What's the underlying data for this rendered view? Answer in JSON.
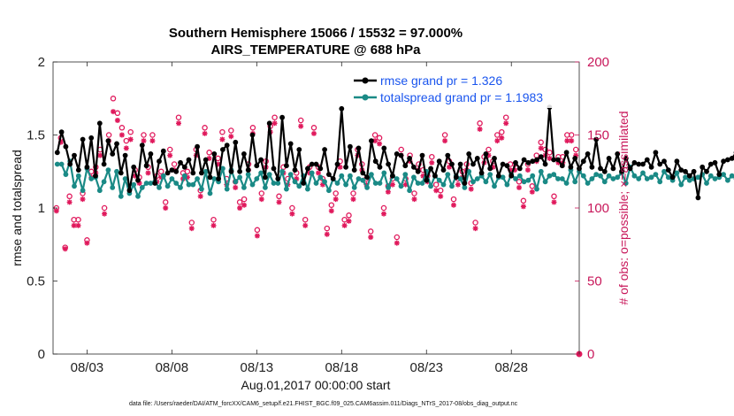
{
  "chart_data": {
    "type": "line",
    "title": "Southern Hemisphere 15066 / 15532 = 97.000%",
    "subtitle": "AIRS_TEMPERATURE @ 688 hPa",
    "xlabel": "Aug.01,2017 00:00:00 start",
    "ylabel": "rmse and totalspread",
    "ylabel_right": "# of obs: o=possible; ×=assimilated",
    "ylim": [
      0,
      2
    ],
    "ylim_right": [
      0,
      200
    ],
    "xlim": [
      1.0,
      32.0
    ],
    "x_ticks": [
      3,
      8,
      13,
      18,
      23,
      28
    ],
    "x_tick_labels": [
      "08/03",
      "08/08",
      "08/13",
      "08/18",
      "08/23",
      "08/28"
    ],
    "y_ticks": [
      0,
      0.5,
      1,
      1.5,
      2
    ],
    "y_tick_labels": [
      "0",
      "0.5",
      "1",
      "1.5",
      "2"
    ],
    "y_right_ticks": [
      0,
      50,
      100,
      150,
      200
    ],
    "y_right_tick_labels": [
      "0",
      "50",
      "100",
      "150",
      "200"
    ],
    "legend_position": "top-right",
    "grid": false,
    "colors": {
      "rmse": "#000000",
      "spread": "#1a8a86",
      "obs": "#e0195c",
      "right_axis": "#c8175a",
      "legend_text": "#1a55ee"
    },
    "x_step": 0.25,
    "series": [
      {
        "name": "rmse grand pr = 1.326",
        "values": [
          1.38,
          1.52,
          1.42,
          1.3,
          1.36,
          1.26,
          1.47,
          1.28,
          1.48,
          1.22,
          1.58,
          1.3,
          1.46,
          1.37,
          1.44,
          1.24,
          1.36,
          1.12,
          1.28,
          1.19,
          1.43,
          1.29,
          1.37,
          1.17,
          1.32,
          1.39,
          1.24,
          1.26,
          1.25,
          1.31,
          1.28,
          1.33,
          1.24,
          1.42,
          1.24,
          1.33,
          1.21,
          1.37,
          1.2,
          1.4,
          1.43,
          1.25,
          1.45,
          1.25,
          1.37,
          1.26,
          1.5,
          1.29,
          1.33,
          1.21,
          1.58,
          1.27,
          1.2,
          1.62,
          1.29,
          1.44,
          1.26,
          1.4,
          1.17,
          1.27,
          1.3,
          1.3,
          1.27,
          1.4,
          1.23,
          1.2,
          1.3,
          1.68,
          1.28,
          1.42,
          1.26,
          1.41,
          1.24,
          1.21,
          1.46,
          1.32,
          1.28,
          1.41,
          1.3,
          1.22,
          1.37,
          1.36,
          1.29,
          1.34,
          1.28,
          1.25,
          1.36,
          1.19,
          1.27,
          1.22,
          1.32,
          1.26,
          1.36,
          1.3,
          1.21,
          1.3,
          1.17,
          1.37,
          1.3,
          1.34,
          1.24,
          1.37,
          1.27,
          1.34,
          1.22,
          1.3,
          1.29,
          1.22,
          1.31,
          1.27,
          1.33,
          1.31,
          1.32,
          1.33,
          1.35,
          1.3,
          1.69,
          1.33,
          1.33,
          1.29,
          1.38,
          1.28,
          1.34,
          1.27,
          1.32,
          1.37,
          1.28,
          1.47,
          1.27,
          1.25,
          1.34,
          1.27,
          1.37,
          1.25,
          1.34,
          1.27,
          1.31,
          1.3,
          1.3,
          1.33,
          1.28,
          1.38,
          1.3,
          1.32,
          1.26,
          1.21,
          1.32,
          1.26,
          1.25,
          1.22,
          1.25,
          1.07,
          1.28,
          1.25,
          1.3,
          1.31,
          1.23,
          1.32,
          1.33,
          1.34,
          1.38,
          1.42,
          1.33,
          1.37,
          1.4,
          1.23,
          1.34,
          1.35,
          1.32
        ]
      },
      {
        "name": "totalspread grand pr = 1.1983",
        "values": [
          1.3,
          1.3,
          1.23,
          1.32,
          1.15,
          1.22,
          1.12,
          1.27,
          1.2,
          1.21,
          1.12,
          1.18,
          1.26,
          1.14,
          1.25,
          1.08,
          1.2,
          1.1,
          1.16,
          1.08,
          1.14,
          1.17,
          1.17,
          1.18,
          1.14,
          1.22,
          1.15,
          1.2,
          1.17,
          1.14,
          1.22,
          1.16,
          1.16,
          1.2,
          1.13,
          1.25,
          1.1,
          1.2,
          1.18,
          1.27,
          1.13,
          1.26,
          1.18,
          1.21,
          1.14,
          1.23,
          1.16,
          1.2,
          1.24,
          1.14,
          1.23,
          1.17,
          1.17,
          1.25,
          1.13,
          1.23,
          1.18,
          1.15,
          1.22,
          1.13,
          1.24,
          1.17,
          1.21,
          1.18,
          1.12,
          1.2,
          1.17,
          1.22,
          1.16,
          1.22,
          1.14,
          1.2,
          1.19,
          1.14,
          1.23,
          1.17,
          1.17,
          1.24,
          1.14,
          1.22,
          1.2,
          1.15,
          1.23,
          1.12,
          1.21,
          1.17,
          1.17,
          1.25,
          1.15,
          1.22,
          1.19,
          1.16,
          1.23,
          1.15,
          1.22,
          1.2,
          1.14,
          1.25,
          1.18,
          1.2,
          1.22,
          1.18,
          1.23,
          1.15,
          1.21,
          1.21,
          1.16,
          1.23,
          1.2,
          1.22,
          1.18,
          1.19,
          1.22,
          1.13,
          1.25,
          1.18,
          1.22,
          1.23,
          1.2,
          1.2,
          1.17,
          1.26,
          1.18,
          1.25,
          1.22,
          1.17,
          1.2,
          1.23,
          1.22,
          1.18,
          1.22,
          1.2,
          1.21,
          1.24,
          1.17,
          1.28,
          1.22,
          1.2,
          1.24,
          1.2,
          1.21,
          1.23,
          1.18,
          1.25,
          1.21,
          1.19,
          1.24,
          1.16,
          1.21,
          1.19,
          1.2,
          1.21,
          1.23,
          1.17,
          1.22,
          1.2,
          1.21,
          1.23,
          1.19,
          1.22,
          1.2,
          1.22,
          1.17,
          1.18,
          1.25,
          1.21,
          1.22,
          1.24,
          1.17,
          1.21,
          1.21
        ]
      }
    ],
    "obs_possible_right": [
      100,
      148,
      73,
      108,
      92,
      92,
      110,
      78,
      125,
      128,
      140,
      100,
      150,
      175,
      165,
      155,
      146,
      152,
      126,
      121,
      150,
      128,
      150,
      122,
      125,
      104,
      140,
      130,
      162,
      124,
      125,
      90,
      140,
      112,
      155,
      138,
      92,
      134,
      152,
      120,
      153,
      118,
      104,
      106,
      130,
      155,
      85,
      110,
      132,
      156,
      162,
      108,
      128,
      120,
      100,
      124,
      160,
      92,
      128,
      155,
      128,
      120,
      86,
      102,
      110,
      132,
      92,
      95,
      110,
      140,
      130,
      120,
      84,
      150,
      148,
      100,
      115,
      120,
      80,
      140,
      120,
      136,
      110,
      130,
      126,
      122,
      135,
      116,
      112,
      150,
      132,
      106,
      120,
      125,
      130,
      117,
      90,
      158,
      135,
      140,
      132,
      150,
      152,
      162,
      130,
      130,
      118,
      105,
      130,
      115,
      136,
      145,
      140,
      138,
      108,
      135,
      135,
      150,
      150,
      140
    ],
    "obs_assimilated_right": [
      98,
      145,
      72,
      104,
      88,
      88,
      106,
      76,
      121,
      124,
      136,
      96,
      146,
      166,
      160,
      150,
      141,
      147,
      122,
      117,
      146,
      124,
      146,
      118,
      121,
      100,
      136,
      126,
      158,
      120,
      121,
      86,
      136,
      108,
      151,
      134,
      88,
      130,
      147,
      116,
      149,
      114,
      100,
      102,
      126,
      151,
      81,
      106,
      128,
      152,
      158,
      104,
      124,
      116,
      96,
      120,
      156,
      88,
      124,
      151,
      124,
      116,
      82,
      98,
      106,
      128,
      88,
      91,
      106,
      136,
      126,
      116,
      80,
      146,
      144,
      96,
      111,
      116,
      76,
      136,
      116,
      132,
      106,
      126,
      122,
      118,
      131,
      112,
      108,
      146,
      128,
      102,
      116,
      121,
      126,
      113,
      86,
      154,
      131,
      136,
      128,
      146,
      148,
      158,
      126,
      126,
      114,
      101,
      126,
      111,
      132,
      141,
      136,
      134,
      104,
      131,
      131,
      146,
      146,
      136
    ]
  },
  "footer_text": "data file: /Users/raeder/DAI/ATM_forcXX/CAM6_setup/f.e21.FHIST_BGC.f09_025.CAM6assim.011/Diags_NTrS_2017-08/obs_diag_output.nc"
}
